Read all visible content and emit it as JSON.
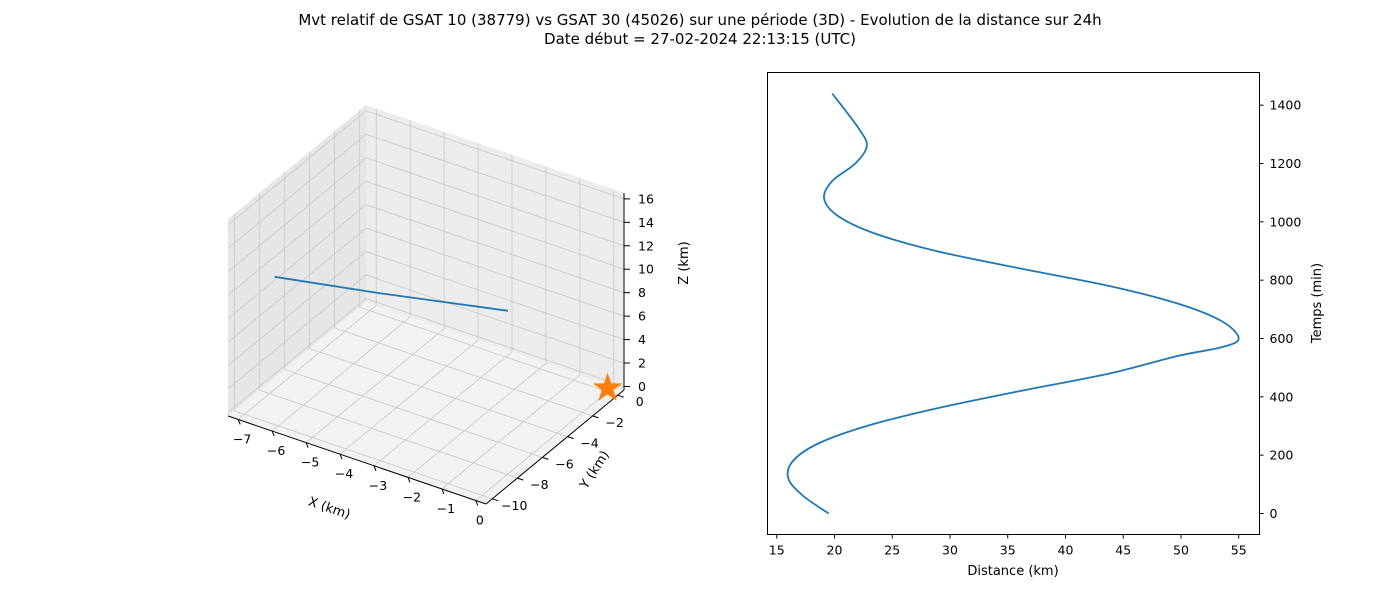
{
  "figure": {
    "title_line1": "Mvt relatif de GSAT 10 (38779) vs GSAT 30 (45026) sur une période (3D) - Evolution de la distance sur 24h",
    "title_line2": "Date début = 27-02-2024 22:13:15 (UTC)"
  },
  "chart_data": [
    {
      "type": "line3d",
      "xlabel": "X (km)",
      "ylabel": "Y (km)",
      "zlabel": "Z (km)",
      "xlim": [
        -7.3,
        0.3
      ],
      "ylim": [
        -10.5,
        0.5
      ],
      "zlim": [
        -0.3,
        16.5
      ],
      "xticks": [
        -7,
        -6,
        -5,
        -4,
        -3,
        -2,
        -1,
        0
      ],
      "yticks": [
        -10,
        -8,
        -6,
        -4,
        -2,
        0
      ],
      "zticks": [
        0,
        2,
        4,
        6,
        8,
        10,
        12,
        14,
        16
      ],
      "grid": true,
      "series": [
        {
          "kind": "line",
          "color": "#1f77b4",
          "points": [
            [
              -7.0,
              -7.6,
              9.3
            ],
            [
              -4.6,
              -5.9,
              8.8
            ],
            [
              -1.6,
              -3.6,
              8.2
            ]
          ]
        },
        {
          "kind": "marker",
          "marker": "star",
          "color": "#ff7f0e",
          "points": [
            [
              0,
              0,
              0
            ]
          ]
        }
      ]
    },
    {
      "type": "line",
      "xlabel": "Distance (km)",
      "ylabel": "Temps (min)",
      "y_axis_side": "right",
      "xlim": [
        14.2,
        56.8
      ],
      "ylim": [
        -72,
        1512
      ],
      "xticks": [
        15,
        20,
        25,
        30,
        35,
        40,
        45,
        50,
        55
      ],
      "yticks": [
        0,
        200,
        400,
        600,
        800,
        1000,
        1200,
        1400
      ],
      "grid": false,
      "series": [
        {
          "color": "#1f77b4",
          "x": [
            19.5,
            17.3,
            16.0,
            16.4,
            18.6,
            22.8,
            28.8,
            36.1,
            43.8,
            49.7,
            53.5,
            55.0,
            53.5,
            49.7,
            43.8,
            36.1,
            28.8,
            23.5,
            20.3,
            19.1,
            19.8,
            21.8,
            22.8,
            22.1,
            19.8
          ],
          "y": [
            0,
            60,
            120,
            180,
            240,
            300,
            360,
            420,
            480,
            540,
            570,
            600,
            660,
            720,
            780,
            840,
            900,
            960,
            1020,
            1080,
            1140,
            1200,
            1260,
            1320,
            1440
          ]
        }
      ]
    }
  ]
}
